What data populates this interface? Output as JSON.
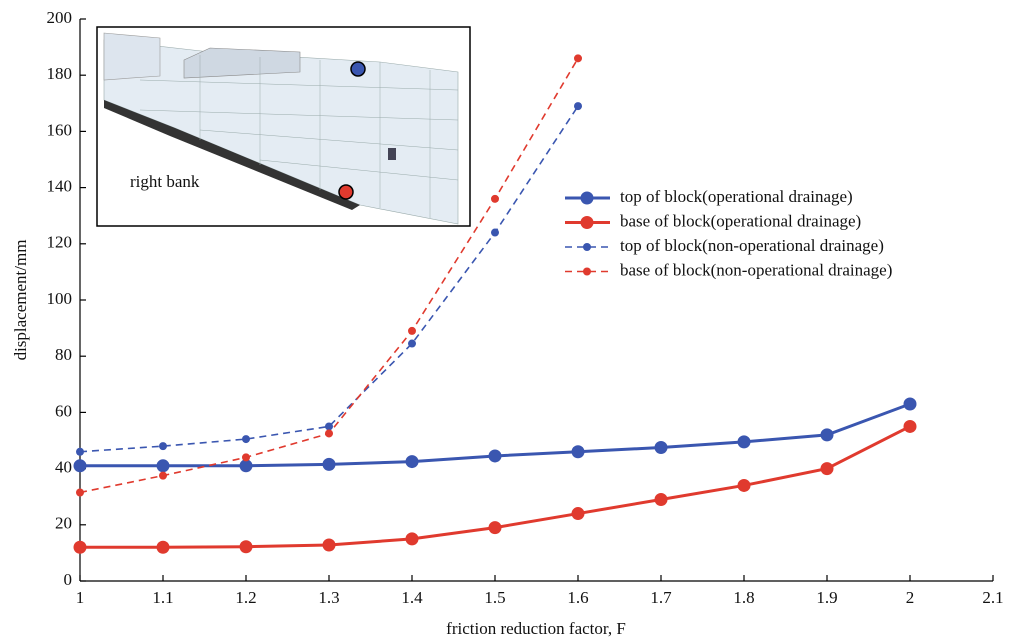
{
  "chart_data": {
    "type": "line",
    "xlabel": "friction reduction factor, F",
    "ylabel": "displacement/mm",
    "inset_label": "right bank",
    "x": [
      1,
      1.1,
      1.2,
      1.3,
      1.4,
      1.5,
      1.6,
      1.7,
      1.8,
      1.9,
      2
    ],
    "series": [
      {
        "name": "top of block(operational drainage)",
        "color": "#3a56b0",
        "dashed": false,
        "values": [
          41,
          41,
          41,
          41.5,
          42.5,
          44.5,
          46,
          47.5,
          49.5,
          52,
          63
        ]
      },
      {
        "name": "base of block(operational drainage)",
        "color": "#e03a2e",
        "dashed": false,
        "values": [
          12,
          12,
          12.2,
          12.8,
          15,
          19,
          24,
          29,
          34,
          40,
          55
        ]
      },
      {
        "name": "top of block(non-operational drainage)",
        "color": "#3a56b0",
        "dashed": true,
        "values": [
          46,
          48,
          50.5,
          55,
          84.5,
          124,
          169,
          null,
          null,
          null,
          null
        ]
      },
      {
        "name": "base of block(non-operational drainage)",
        "color": "#e03a2e",
        "dashed": true,
        "values": [
          31.5,
          37.5,
          44,
          52.5,
          89,
          136,
          186,
          null,
          null,
          null,
          null
        ]
      }
    ],
    "xlim": [
      1,
      2.1
    ],
    "xticks": [
      1,
      1.1,
      1.2,
      1.3,
      1.4,
      1.5,
      1.6,
      1.7,
      1.8,
      1.9,
      2,
      2.1
    ],
    "ylim": [
      0,
      200
    ],
    "yticks": [
      0,
      20,
      40,
      60,
      80,
      100,
      120,
      140,
      160,
      180,
      200
    ],
    "legend": "right"
  }
}
